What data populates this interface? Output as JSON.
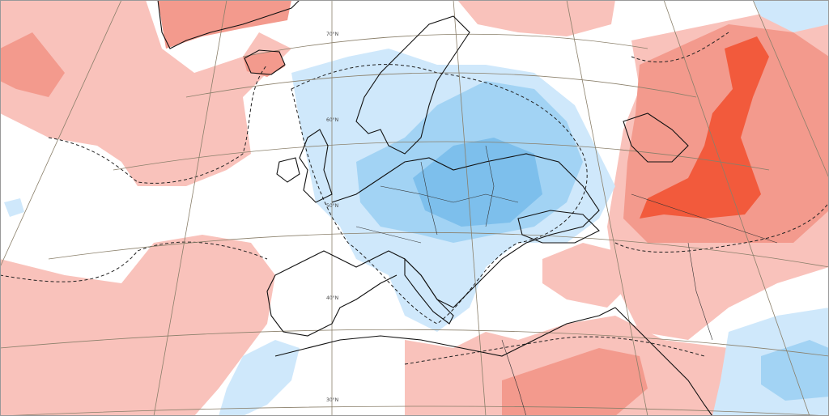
{
  "map": {
    "lat_labels": [
      "70°N",
      "60°N",
      "50°N",
      "40°N",
      "30°N"
    ],
    "colors": {
      "background": "#ffffff",
      "warm_light": "#f9c2bb",
      "warm_medium": "#f39a8d",
      "warm_strong": "#f25a3c",
      "cold_light": "#cfe8fb",
      "cold_medium": "#a2d3f4",
      "cold_strong": "#7dbfec",
      "coastline": "#111111",
      "graticule": "#8a7f6a"
    }
  }
}
